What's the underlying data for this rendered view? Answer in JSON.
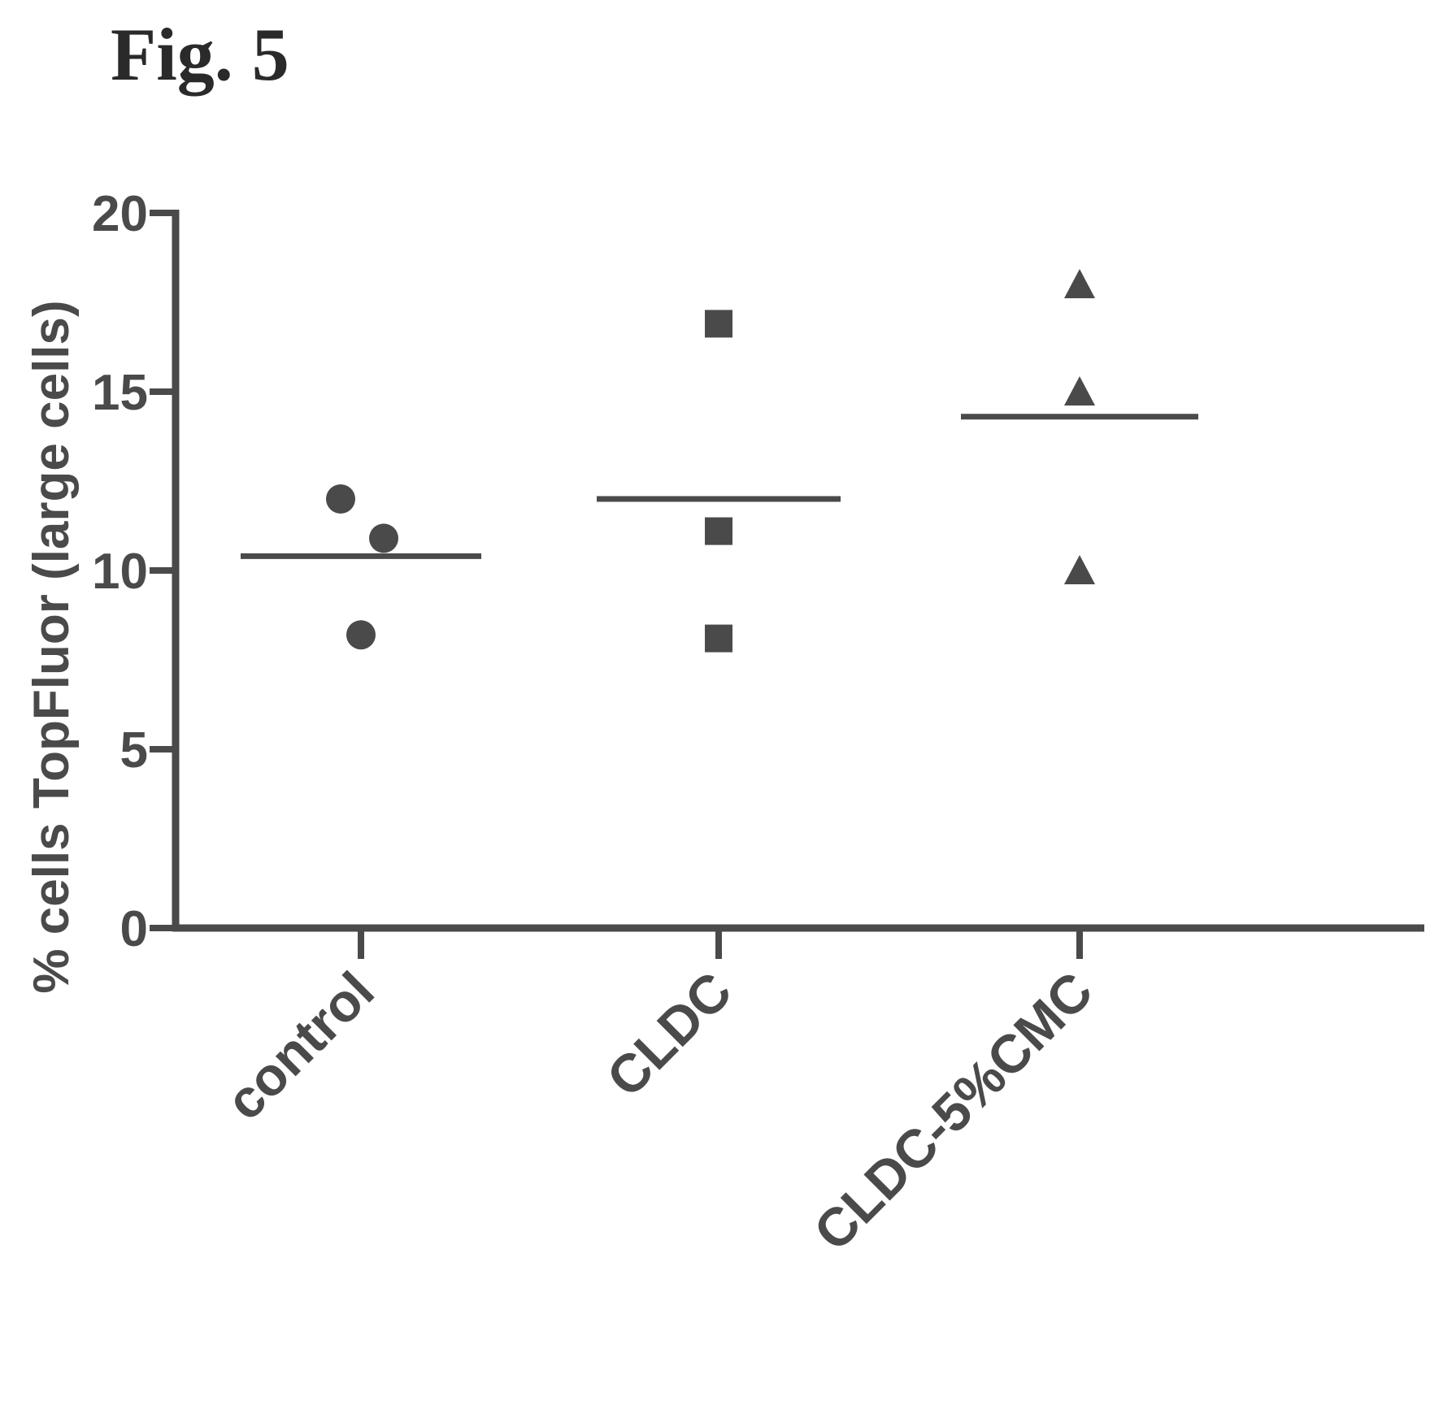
{
  "figure": {
    "label": "Fig. 5"
  },
  "chart_data": {
    "type": "scatter",
    "title": "",
    "xlabel": "",
    "ylabel": "% cells TopFluor (large cells)",
    "ylim": [
      0,
      20
    ],
    "yticks": [
      0,
      5,
      10,
      15,
      20
    ],
    "categories": [
      "control",
      "CLDC",
      "CLDC-5%CMC"
    ],
    "series": [
      {
        "category": "control",
        "marker": "circle",
        "values": [
          12.0,
          10.9,
          8.2
        ],
        "mean": 10.4
      },
      {
        "category": "CLDC",
        "marker": "square",
        "values": [
          16.9,
          11.1,
          8.1
        ],
        "mean": 12.0
      },
      {
        "category": "CLDC-5%CMC",
        "marker": "triangle",
        "values": [
          18.0,
          15.0,
          10.0
        ],
        "mean": 14.3
      }
    ],
    "grid": false,
    "colors": {
      "ink": "#4a4a4a"
    }
  }
}
